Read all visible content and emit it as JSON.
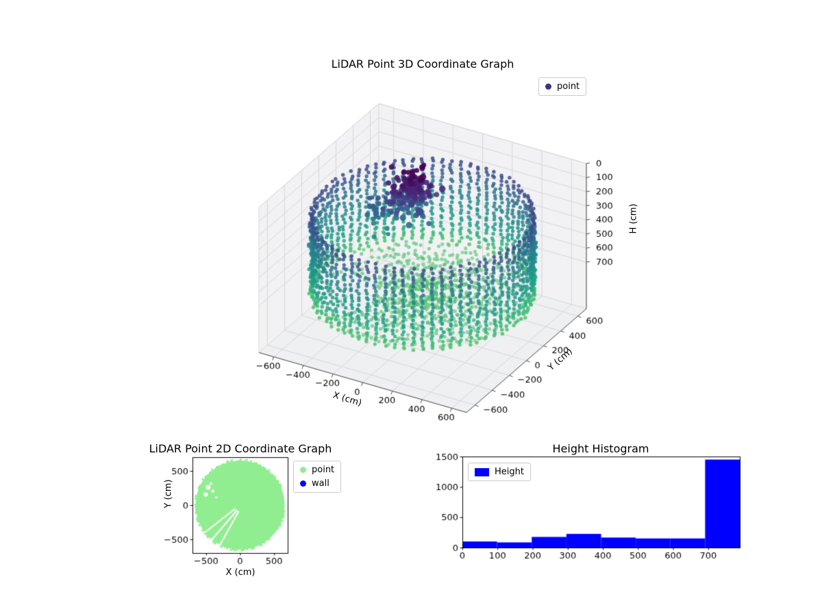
{
  "figure": {
    "background": "#ffffff"
  },
  "chart_data": [
    {
      "id": "lidar-3d",
      "type": "scatter3d",
      "title": "LiDAR Point 3D Coordinate Graph",
      "xlabel": "X (cm)",
      "ylabel": "Y (cm)",
      "zlabel": "H (cm)",
      "xlim": [
        -700,
        700
      ],
      "ylim": [
        -700,
        700
      ],
      "hlim": [
        0,
        1030
      ],
      "h_axis_inverted": true,
      "xticks": [
        -600,
        -400,
        -200,
        0,
        200,
        400,
        600
      ],
      "yticks": [
        -600,
        -400,
        -200,
        0,
        200,
        400,
        600
      ],
      "hticks": [
        0,
        100,
        200,
        300,
        400,
        500,
        600,
        700
      ],
      "view": {
        "elev": 30,
        "azim": -60
      },
      "colormap": "viridis",
      "grid": true,
      "legend_loc": "upper right",
      "legend": [
        {
          "label": "point",
          "color": "#3a3580",
          "marker": "circle"
        }
      ],
      "point_cloud": {
        "description": "LiDAR scan of a cylindrical room: circular wall of radius ~650 cm with points from H~200 to H~790 cm arranged in vertical columns every 5 deg, floor ring pattern at H~735-790 cm along radial scan lines, colored by height with viridis (purple = low H near sensor, green = floor). Dense dark-purple object cluster near the top center (H ~ 0-300 cm). Gaps/holes in the floor on the left and lower-left sides.",
        "wall": {
          "radius": 650,
          "angle_step_deg": 5,
          "h_min": 205,
          "h_max": 790,
          "h_step": 24.5
        },
        "floor": {
          "h_min": 735,
          "h_max": 790,
          "r_min": 75,
          "r_max": 630,
          "r_step": 48,
          "angle_step_deg": 5
        },
        "clusters": [
          {
            "cx": -140,
            "cy": 105,
            "ch": 140,
            "sxy": 60,
            "sh": 80,
            "count": 150
          },
          {
            "cx": -330,
            "cy": 60,
            "ch": 330,
            "sxy": 40,
            "sh": 55,
            "count": 30
          },
          {
            "cx": -260,
            "cy": 90,
            "ch": 260,
            "sxy": 85,
            "sh": 70,
            "count": 12
          }
        ]
      }
    },
    {
      "id": "lidar-2d",
      "type": "scatter",
      "title": "LiDAR Point 2D Coordinate Graph",
      "xlabel": "X (cm)",
      "ylabel": "Y (cm)",
      "xlim": [
        -700,
        700
      ],
      "ylim": [
        -700,
        700
      ],
      "xticks": [
        -500,
        0,
        500
      ],
      "yticks": [
        -500,
        0,
        500
      ],
      "legend_loc": "outside upper right",
      "legend": [
        {
          "label": "point",
          "color": "#90ee90",
          "marker": "circle"
        },
        {
          "label": "wall",
          "color": "#0000ff",
          "marker": "circle"
        }
      ],
      "disc": {
        "center_x": 0,
        "center_y": 0,
        "radius": 655,
        "color": "#90ee90"
      },
      "holes": [
        [
          -470,
          260,
          35
        ],
        [
          -505,
          155,
          30
        ],
        [
          -400,
          205,
          22
        ],
        [
          -430,
          315,
          20
        ],
        [
          -350,
          115,
          16
        ]
      ],
      "streaks": [
        [
          -40,
          -70,
          -430,
          -520
        ],
        [
          -20,
          -90,
          -300,
          -590
        ],
        [
          -70,
          -50,
          -520,
          -400
        ]
      ]
    },
    {
      "id": "height-histogram",
      "type": "bar",
      "title": "Height Histogram",
      "legend_loc": "upper left",
      "legend": [
        {
          "label": "Height",
          "color": "#0000ff",
          "marker": "square"
        }
      ],
      "bar_color": "#0000ff",
      "bin_edges": [
        0,
        98.75,
        197.5,
        296.25,
        395,
        493.75,
        592.5,
        691.25,
        790
      ],
      "values": [
        100,
        85,
        175,
        225,
        165,
        150,
        150,
        1450
      ],
      "xticks": [
        0,
        100,
        200,
        300,
        400,
        500,
        600,
        700
      ],
      "yticks": [
        0,
        500,
        1000,
        1500
      ],
      "xlim": [
        0,
        790
      ],
      "ylim": [
        0,
        1500
      ]
    }
  ]
}
